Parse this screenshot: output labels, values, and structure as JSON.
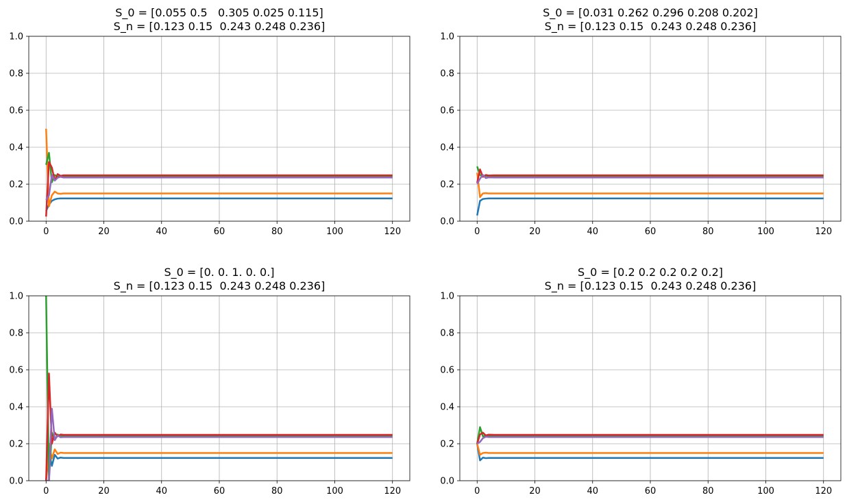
{
  "chart_data": [
    {
      "type": "line",
      "title": "S_0 = [0.055 0.5   0.305 0.025 0.115]\nS_n = [0.123 0.15  0.243 0.248 0.236]",
      "xlabel": "",
      "ylabel": "",
      "xlim": [
        -6,
        126
      ],
      "ylim": [
        0,
        1
      ],
      "xticks": [
        0,
        20,
        40,
        60,
        80,
        100,
        120
      ],
      "yticks": [
        0.0,
        0.2,
        0.4,
        0.6,
        0.8,
        1.0
      ],
      "grid": true,
      "series": [
        {
          "color": "#1f77b4",
          "x": [
            0,
            1,
            2,
            3,
            4,
            5,
            6,
            8,
            10,
            120
          ],
          "y": [
            0.055,
            0.09,
            0.11,
            0.118,
            0.122,
            0.123,
            0.123,
            0.123,
            0.123,
            0.123
          ]
        },
        {
          "color": "#ff7f0e",
          "x": [
            0,
            1,
            2,
            3,
            4,
            5,
            6,
            8,
            10,
            120
          ],
          "y": [
            0.5,
            0.08,
            0.14,
            0.16,
            0.15,
            0.148,
            0.15,
            0.15,
            0.15,
            0.15
          ]
        },
        {
          "color": "#2ca02c",
          "x": [
            0,
            1,
            2,
            3,
            4,
            5,
            6,
            8,
            10,
            120
          ],
          "y": [
            0.305,
            0.37,
            0.21,
            0.25,
            0.24,
            0.245,
            0.243,
            0.243,
            0.243,
            0.243
          ]
        },
        {
          "color": "#d62728",
          "x": [
            0,
            1,
            2,
            3,
            4,
            5,
            6,
            8,
            10,
            120
          ],
          "y": [
            0.025,
            0.32,
            0.29,
            0.22,
            0.255,
            0.245,
            0.248,
            0.248,
            0.248,
            0.248
          ]
        },
        {
          "color": "#9467bd",
          "x": [
            0,
            1,
            2,
            3,
            4,
            5,
            6,
            8,
            10,
            120
          ],
          "y": [
            0.115,
            0.14,
            0.25,
            0.22,
            0.235,
            0.24,
            0.236,
            0.236,
            0.236,
            0.236
          ]
        }
      ]
    },
    {
      "type": "line",
      "title": "S_0 = [0.031 0.262 0.296 0.208 0.202]\nS_n = [0.123 0.15  0.243 0.248 0.236]",
      "xlabel": "",
      "ylabel": "",
      "xlim": [
        -6,
        126
      ],
      "ylim": [
        0,
        1
      ],
      "xticks": [
        0,
        20,
        40,
        60,
        80,
        100,
        120
      ],
      "yticks": [
        0.0,
        0.2,
        0.4,
        0.6,
        0.8,
        1.0
      ],
      "grid": true,
      "series": [
        {
          "color": "#1f77b4",
          "x": [
            0,
            1,
            2,
            3,
            4,
            6,
            120
          ],
          "y": [
            0.031,
            0.11,
            0.12,
            0.122,
            0.123,
            0.123,
            0.123
          ]
        },
        {
          "color": "#ff7f0e",
          "x": [
            0,
            1,
            2,
            3,
            4,
            6,
            120
          ],
          "y": [
            0.262,
            0.13,
            0.15,
            0.152,
            0.15,
            0.15,
            0.15
          ]
        },
        {
          "color": "#2ca02c",
          "x": [
            0,
            1,
            2,
            3,
            4,
            6,
            120
          ],
          "y": [
            0.296,
            0.25,
            0.24,
            0.245,
            0.243,
            0.243,
            0.243
          ]
        },
        {
          "color": "#d62728",
          "x": [
            0,
            1,
            2,
            3,
            4,
            6,
            120
          ],
          "y": [
            0.208,
            0.28,
            0.24,
            0.25,
            0.247,
            0.248,
            0.248
          ]
        },
        {
          "color": "#9467bd",
          "x": [
            0,
            1,
            2,
            3,
            4,
            6,
            120
          ],
          "y": [
            0.202,
            0.23,
            0.25,
            0.233,
            0.237,
            0.236,
            0.236
          ]
        }
      ]
    },
    {
      "type": "line",
      "title": "S_0 = [0. 0. 1. 0. 0.]\nS_n = [0.123 0.15  0.243 0.248 0.236]",
      "xlabel": "",
      "ylabel": "",
      "xlim": [
        -6,
        126
      ],
      "ylim": [
        0,
        1
      ],
      "xticks": [
        0,
        20,
        40,
        60,
        80,
        100,
        120
      ],
      "yticks": [
        0.0,
        0.2,
        0.4,
        0.6,
        0.8,
        1.0
      ],
      "grid": true,
      "series": [
        {
          "color": "#1f77b4",
          "x": [
            0,
            1,
            2,
            3,
            4,
            5,
            6,
            8,
            10,
            120
          ],
          "y": [
            0.0,
            0.16,
            0.08,
            0.14,
            0.12,
            0.125,
            0.123,
            0.123,
            0.123,
            0.123
          ]
        },
        {
          "color": "#ff7f0e",
          "x": [
            0,
            1,
            2,
            3,
            4,
            5,
            6,
            8,
            10,
            120
          ],
          "y": [
            0.0,
            0.2,
            0.12,
            0.17,
            0.145,
            0.152,
            0.15,
            0.15,
            0.15,
            0.15
          ]
        },
        {
          "color": "#2ca02c",
          "x": [
            0,
            1,
            2,
            3,
            4,
            5,
            6,
            8,
            10,
            120
          ],
          "y": [
            1.0,
            0.0,
            0.26,
            0.22,
            0.25,
            0.24,
            0.243,
            0.243,
            0.243,
            0.243
          ]
        },
        {
          "color": "#d62728",
          "x": [
            0,
            1,
            2,
            3,
            4,
            5,
            6,
            8,
            10,
            120
          ],
          "y": [
            0.0,
            0.58,
            0.2,
            0.26,
            0.24,
            0.25,
            0.248,
            0.248,
            0.248,
            0.248
          ]
        },
        {
          "color": "#9467bd",
          "x": [
            0,
            1,
            2,
            3,
            4,
            5,
            6,
            8,
            10,
            120
          ],
          "y": [
            0.0,
            0.0,
            0.39,
            0.22,
            0.245,
            0.235,
            0.236,
            0.236,
            0.236,
            0.236
          ]
        }
      ]
    },
    {
      "type": "line",
      "title": "S_0 = [0.2 0.2 0.2 0.2 0.2]\nS_n = [0.123 0.15  0.243 0.248 0.236]",
      "xlabel": "",
      "ylabel": "",
      "xlim": [
        -6,
        126
      ],
      "ylim": [
        0,
        1
      ],
      "xticks": [
        0,
        20,
        40,
        60,
        80,
        100,
        120
      ],
      "yticks": [
        0.0,
        0.2,
        0.4,
        0.6,
        0.8,
        1.0
      ],
      "grid": true,
      "series": [
        {
          "color": "#1f77b4",
          "x": [
            0,
            1,
            2,
            3,
            4,
            6,
            120
          ],
          "y": [
            0.2,
            0.11,
            0.125,
            0.122,
            0.123,
            0.123,
            0.123
          ]
        },
        {
          "color": "#ff7f0e",
          "x": [
            0,
            1,
            2,
            3,
            4,
            6,
            120
          ],
          "y": [
            0.2,
            0.14,
            0.15,
            0.152,
            0.15,
            0.15,
            0.15
          ]
        },
        {
          "color": "#2ca02c",
          "x": [
            0,
            1,
            2,
            3,
            4,
            6,
            120
          ],
          "y": [
            0.2,
            0.29,
            0.24,
            0.245,
            0.243,
            0.243,
            0.243
          ]
        },
        {
          "color": "#d62728",
          "x": [
            0,
            1,
            2,
            3,
            4,
            6,
            120
          ],
          "y": [
            0.2,
            0.25,
            0.26,
            0.245,
            0.249,
            0.248,
            0.248
          ]
        },
        {
          "color": "#9467bd",
          "x": [
            0,
            1,
            2,
            3,
            4,
            6,
            120
          ],
          "y": [
            0.2,
            0.21,
            0.23,
            0.238,
            0.236,
            0.236,
            0.236
          ]
        }
      ]
    }
  ]
}
